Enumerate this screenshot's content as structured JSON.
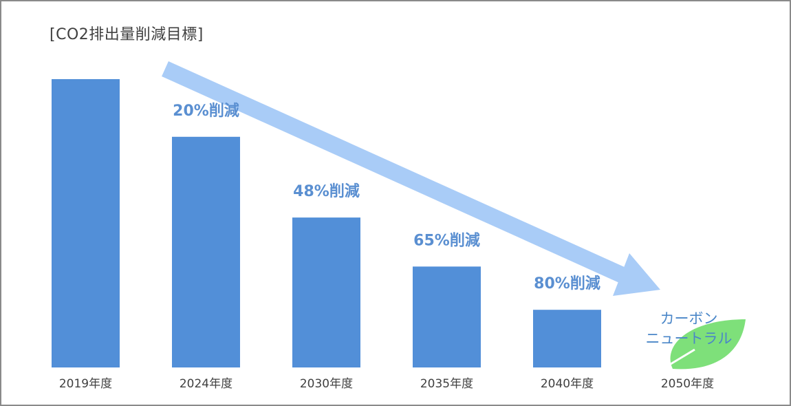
{
  "chart_data": {
    "type": "bar",
    "title": "[CO2排出量削減目標]",
    "categories": [
      "2019年度",
      "2024年度",
      "2030年度",
      "2035年度",
      "2040年度",
      "2050年度"
    ],
    "values": [
      100,
      80,
      52,
      35,
      20,
      0
    ],
    "data_labels": [
      "",
      "20%削減",
      "48%削減",
      "65%削減",
      "80%削減",
      ""
    ],
    "ylim": [
      0,
      100
    ],
    "xlabel": "",
    "ylabel": "",
    "grid": false,
    "bar_color": "#528fd8",
    "label_color": "#5a8fd1",
    "arrow_color": "#a9ccf7",
    "leaf_color": "#7ee07a",
    "annotation": {
      "category": "2050年度",
      "lines": [
        "カーボン",
        "ニュートラル"
      ]
    }
  }
}
